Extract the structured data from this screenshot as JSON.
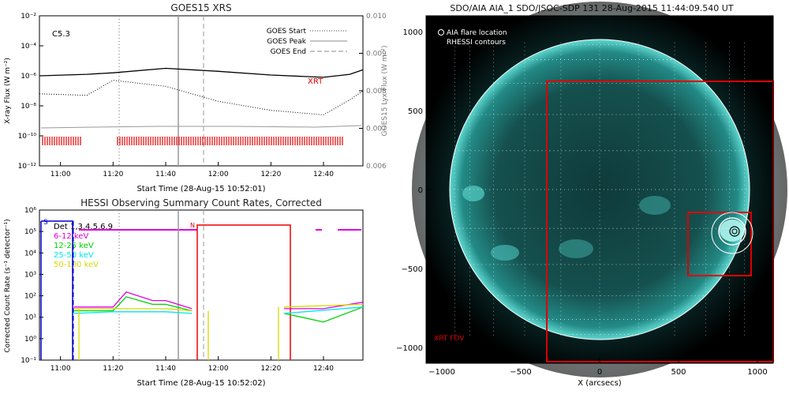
{
  "goes": {
    "title": "GOES15 XRS",
    "xlabel": "Start Time (28-Aug-15 10:52:01)",
    "ylabel": "X-ray Flux (W m⁻²)",
    "ylabel_right": "GOES15 Lyx Flux (W m⁻²)",
    "flare_class": "C5.3",
    "annotation": "XRT",
    "left_ticks": [
      "10⁻²",
      "10⁻⁴",
      "10⁻⁶",
      "10⁻⁸",
      "10⁻¹⁰",
      "10⁻¹²"
    ],
    "right_ticks": [
      "0.010",
      "0.009",
      "0.008",
      "0.007",
      "0.006"
    ],
    "x_ticks": [
      "11:00",
      "11:20",
      "11:40",
      "12:00",
      "12:20",
      "12:40"
    ],
    "legend": [
      "GOES Start",
      "GOES Peak",
      "GOES End"
    ]
  },
  "hessi": {
    "title": "HESSI Observing Summary Count Rates, Corrected",
    "xlabel": "Start Time (28-Aug-15 10:52:02)",
    "ylabel": "Corrected Count Rate (s⁻¹ detector⁻¹)",
    "left_ticks": [
      "10⁶",
      "10⁵",
      "10⁴",
      "10³",
      "10²",
      "10¹",
      "10⁰",
      "10⁻¹"
    ],
    "x_ticks": [
      "11:00",
      "11:20",
      "11:40",
      "12:00",
      "12:20",
      "12:40"
    ],
    "legend": [
      {
        "label": "Det 1,3,4,5,6,9",
        "color": "#000000"
      },
      {
        "label": "6-12 keV",
        "color": "#e000e0"
      },
      {
        "label": "12-25 keV",
        "color": "#00d000"
      },
      {
        "label": "25-50 keV",
        "color": "#00e8e8"
      },
      {
        "label": "50-100 keV",
        "color": "#d8d800"
      }
    ],
    "marker_s": "S",
    "marker_n": "N"
  },
  "aia": {
    "title": "SDO/AIA AIA_1 SDO/JSOC-SDP 131 28-Aug-2015 11:44:09.540 UT",
    "legend_circle": "AIA flare location",
    "legend_rhessi": "RHESSI contours",
    "fov_label": "XRT FOV",
    "xlabel": "X (arcsecs)",
    "x_ticks": [
      "−1000",
      "−500",
      "0",
      "500",
      "1000"
    ],
    "y_ticks": [
      "1000",
      "500",
      "0",
      "−500",
      "−1000"
    ]
  },
  "colors": {
    "goes_flux": "#000000",
    "xrt_red": "#dd0000",
    "aia_teal": "#35b5b0",
    "hessi_red": "#ee0000",
    "hessi_blue": "#0000cc"
  },
  "chart_data": [
    {
      "type": "line",
      "title": "GOES15 XRS",
      "x_range": [
        "10:52",
        "12:55"
      ],
      "ylim_log": [
        -12,
        -2
      ],
      "series": [
        {
          "x": [
            "10:52",
            "11:10",
            "11:20",
            "11:40",
            "12:00",
            "12:20",
            "12:40",
            "12:50",
            "12:55"
          ],
          "log10_flux": [
            -6.0,
            -5.9,
            -5.8,
            -5.5,
            -5.7,
            -5.95,
            -6.1,
            -5.9,
            -5.6
          ]
        },
        {
          "x": [
            "10:52",
            "11:10",
            "11:20",
            "11:40",
            "12:00",
            "12:20",
            "12:40",
            "12:50",
            "12:55"
          ],
          "log10_flux": [
            -7.2,
            -7.3,
            -6.3,
            -6.7,
            -7.7,
            -8.3,
            -8.6,
            -7.6,
            -7.0
          ]
        }
      ],
      "markers": {
        "GOES Start": "11:22",
        "GOES Peak": "11:44",
        "GOES End": "11:53"
      }
    },
    {
      "type": "line",
      "title": "HESSI Observing Summary Count Rates, Corrected",
      "x_range": [
        "10:52",
        "12:55"
      ],
      "ylim_log": [
        -1,
        6
      ],
      "series": [
        {
          "name": "6-12 keV",
          "x": [
            "11:05",
            "11:20",
            "11:25",
            "11:35",
            "11:40",
            "11:50",
            "12:25",
            "12:40",
            "12:55"
          ],
          "values": [
            30,
            30,
            150,
            60,
            60,
            25,
            25,
            25,
            50
          ]
        },
        {
          "name": "12-25 keV",
          "x": [
            "11:05",
            "11:20",
            "11:25",
            "11:35",
            "11:40",
            "11:50",
            "12:25",
            "12:40",
            "12:55"
          ],
          "values": [
            20,
            20,
            90,
            40,
            40,
            20,
            15,
            6,
            30
          ]
        },
        {
          "name": "25-50 keV",
          "x": [
            "11:05",
            "11:20",
            "11:40",
            "11:50",
            "12:25",
            "12:55"
          ],
          "values": [
            15,
            18,
            18,
            15,
            15,
            30
          ]
        },
        {
          "name": "50-100 keV",
          "x": [
            "11:05",
            "11:20",
            "11:40",
            "11:50",
            "12:25",
            "12:55"
          ],
          "values": [
            25,
            25,
            25,
            20,
            30,
            40
          ]
        }
      ]
    }
  ]
}
